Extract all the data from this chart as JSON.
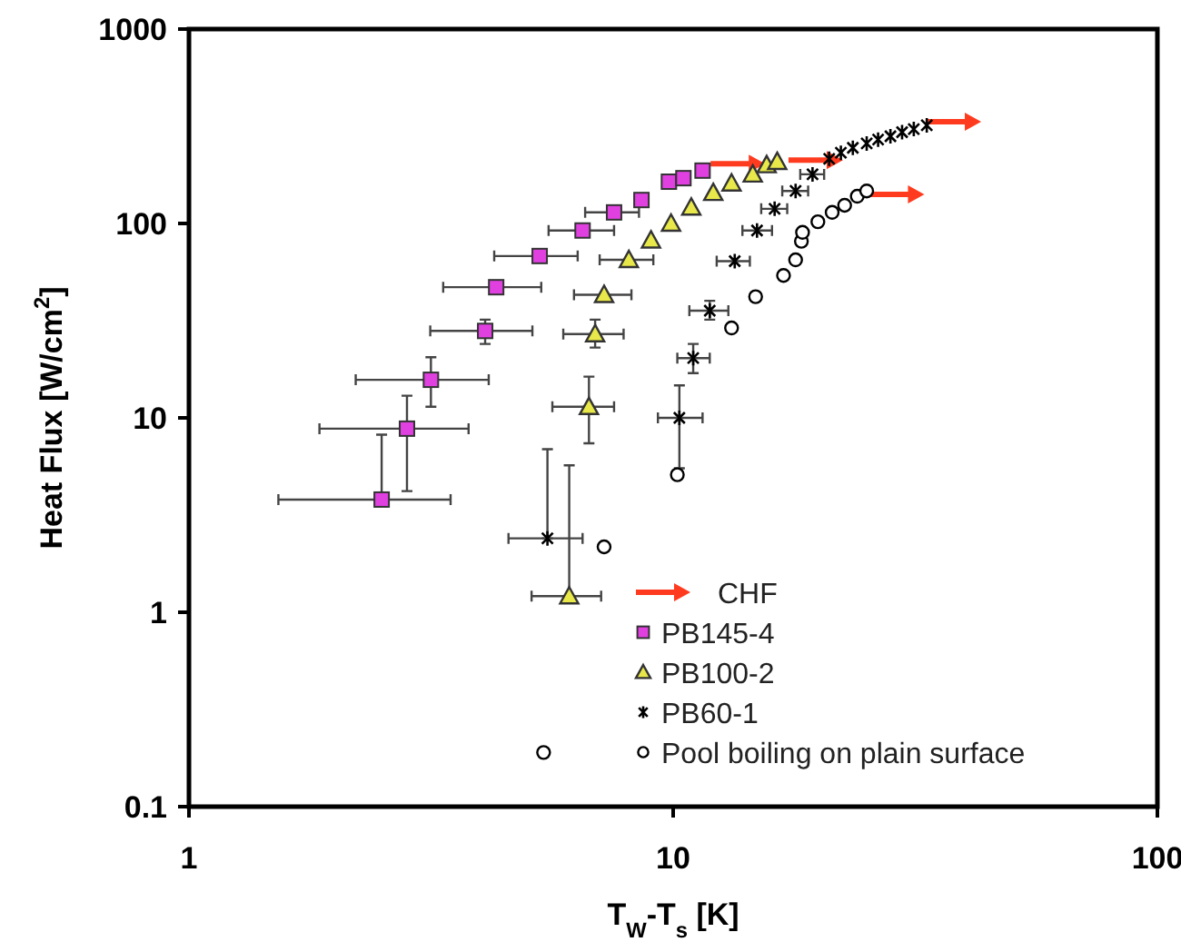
{
  "chart_data": {
    "type": "scatter",
    "xlabel": "T$_{W}$-T$_{s}$ [K]",
    "ylabel": "Heat Flux [W/cm$^{2}$]",
    "log": "xy",
    "xlim": [
      1,
      100
    ],
    "ylim": [
      0.1,
      1000
    ],
    "xticks": [
      1,
      10,
      100
    ],
    "yticks": [
      0.1,
      1,
      10,
      100,
      1000
    ],
    "grid": false,
    "legend": "bottom right",
    "series": [
      {
        "name": "CHF",
        "color": "#ff3b1f",
        "x": [
          13.6,
          19.7,
          29,
          38
        ],
        "values": [
          203,
          212,
          141,
          334
        ]
      },
      {
        "name": "PB145-4",
        "color": "#e040e0",
        "marker": "square",
        "x": [
          2.5,
          2.82,
          3.16,
          4.09,
          4.31,
          5.3,
          6.5,
          7.55,
          8.6,
          9.8,
          10.5,
          11.5
        ],
        "values": [
          3.8,
          8.8,
          15.7,
          28,
          47,
          68,
          92,
          114,
          132,
          164,
          171,
          187
        ],
        "xerrors": [
          [
            1.53,
            3.47
          ],
          [
            1.86,
            3.78
          ],
          [
            2.21,
            4.16
          ],
          [
            3.15,
            5.12
          ],
          [
            3.35,
            5.34
          ],
          [
            4.27,
            6.35
          ],
          [
            5.53,
            7.55
          ],
          [
            6.58,
            8.5
          ],
          null,
          null,
          null,
          null
        ],
        "errors": [
          [
            3.8,
            8.2
          ],
          [
            4.2,
            13
          ],
          [
            11.4,
            20.5
          ],
          [
            24,
            32
          ],
          null,
          null,
          null,
          null,
          null,
          null,
          null,
          null
        ]
      },
      {
        "name": "PB100-2",
        "color": "#e8e84a",
        "marker": "triangle",
        "x": [
          6.1,
          6.7,
          6.9,
          7.2,
          8.1,
          9.0,
          9.9,
          10.9,
          12.1,
          13.2,
          14.6,
          15.6,
          16.4
        ],
        "values": [
          1.21,
          11.4,
          27,
          43,
          65,
          82,
          100,
          121,
          144,
          161,
          179,
          200,
          208
        ],
        "xerrors": [
          [
            5.1,
            7.1
          ],
          [
            5.63,
            7.55
          ],
          [
            5.93,
            7.9
          ],
          [
            6.24,
            8.2
          ],
          [
            7.05,
            9.1
          ],
          null,
          null,
          null,
          null,
          null,
          null,
          null,
          null
        ],
        "errors": [
          [
            1.21,
            5.7
          ],
          [
            7.4,
            16.3
          ],
          [
            23,
            32
          ],
          null,
          null,
          null,
          null,
          null,
          null,
          null,
          null,
          null,
          null
        ]
      },
      {
        "name": "PB60-1",
        "color": "#000000",
        "marker": "cross",
        "x": [
          5.5,
          10.3,
          11.0,
          11.9,
          13.4,
          14.9,
          16.2,
          17.9,
          19.4,
          21,
          22.2,
          23.5,
          25.1,
          26.5,
          28.1,
          29.7,
          31.4,
          33.4
        ],
        "values": [
          2.4,
          10,
          20.3,
          35.6,
          64,
          92,
          119,
          147,
          179,
          215,
          231,
          245,
          258,
          270,
          281,
          295,
          306,
          320
        ],
        "xerrors": [
          [
            4.57,
            6.5
          ],
          [
            9.3,
            11.5
          ],
          [
            10.2,
            11.9
          ],
          [
            10.8,
            13.0
          ],
          [
            12.3,
            14.4
          ],
          [
            13.9,
            16
          ],
          [
            15.2,
            17.2
          ],
          [
            16.8,
            19
          ],
          [
            18.3,
            20.5
          ],
          null,
          null,
          null,
          null,
          null,
          null,
          null,
          null,
          null
        ],
        "errors": [
          [
            2.4,
            6.9
          ],
          [
            5.5,
            14.7
          ],
          [
            17,
            24
          ],
          [
            32,
            40
          ],
          null,
          null,
          null,
          null,
          null,
          null,
          null,
          null,
          null,
          null,
          null,
          null,
          null,
          null
        ]
      },
      {
        "name": "Pool boiling on plain surface",
        "color": "#000000",
        "marker": "circle",
        "x": [
          5.4,
          7.2,
          10.2,
          13.2,
          14.8,
          16.9,
          17.9,
          18.4,
          18.5,
          19.9,
          21.3,
          22.6,
          24,
          25.1
        ],
        "values": [
          0.19,
          2.17,
          5.1,
          29,
          42,
          54,
          65,
          81,
          90,
          102,
          114,
          124,
          138,
          147
        ]
      }
    ]
  }
}
